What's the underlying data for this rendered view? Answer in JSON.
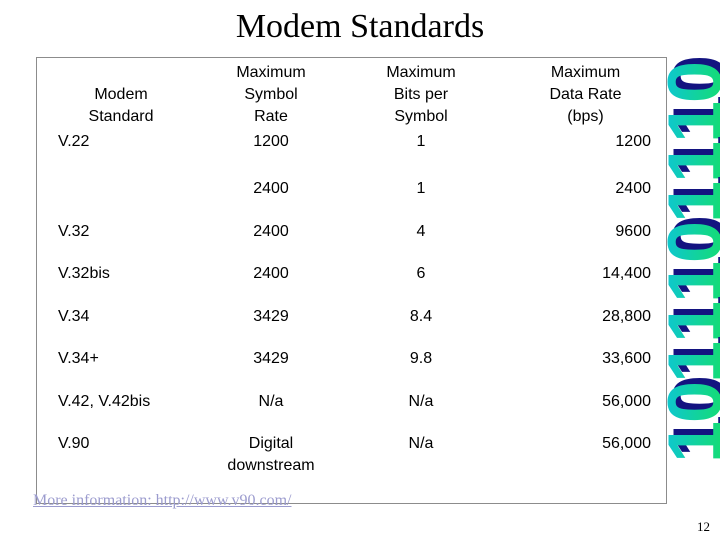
{
  "slide": {
    "title": "Modem Standards",
    "page_number": "12",
    "more_info_link": "More information: http://www.v90.com/",
    "link_color": "#9b9bce"
  },
  "table": {
    "headers": {
      "standard": "Modem\nStandard",
      "symbol_rate": "Maximum\nSymbol\nRate",
      "bits_per_symbol": "Maximum\nBits per\nSymbol",
      "data_rate": "Maximum\nData Rate\n(bps)"
    },
    "rows": [
      {
        "standard": "V.22",
        "symbol_rate": "1200",
        "bits_per_symbol": "1",
        "data_rate": "1200"
      },
      {
        "standard": "",
        "symbol_rate": "2400",
        "bits_per_symbol": "1",
        "data_rate": "2400"
      },
      {
        "standard": "V.32",
        "symbol_rate": "2400",
        "bits_per_symbol": "4",
        "data_rate": "9600"
      },
      {
        "standard": "V.32bis",
        "symbol_rate": "2400",
        "bits_per_symbol": "6",
        "data_rate": "14,400"
      },
      {
        "standard": "V.34",
        "symbol_rate": "3429",
        "bits_per_symbol": "8.4",
        "data_rate": "28,800"
      },
      {
        "standard": "V.34+",
        "symbol_rate": "3429",
        "bits_per_symbol": "9.8",
        "data_rate": "33,600"
      },
      {
        "standard": "V.42, V.42bis",
        "symbol_rate": "N/a",
        "bits_per_symbol": "N/a",
        "data_rate": "56,000"
      },
      {
        "standard": "V.90",
        "symbol_rate": "Digital\ndownstream",
        "bits_per_symbol": "N/a",
        "data_rate": "56,000"
      }
    ]
  },
  "decoration": {
    "digits": "0111011101",
    "cyan": "#0cc2e4",
    "green": "#17e25b",
    "navy": "#131380"
  }
}
